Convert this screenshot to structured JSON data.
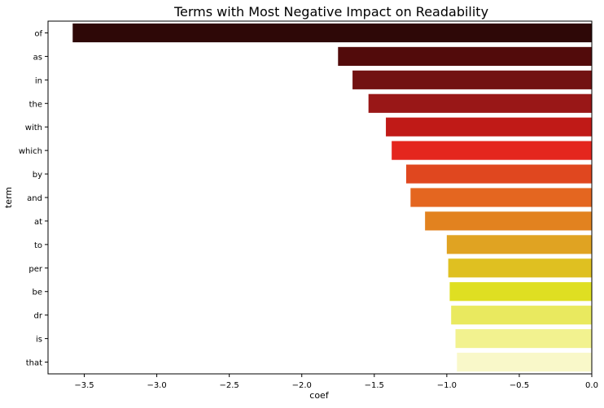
{
  "chart_data": {
    "type": "bar",
    "orientation": "horizontal",
    "title": "Terms with Most Negative Impact on Readability",
    "xlabel": "coef",
    "ylabel": "term",
    "xlim": [
      -3.75,
      0.0
    ],
    "xticks": [
      -3.5,
      -3.0,
      -2.5,
      -2.0,
      -1.5,
      -1.0,
      -0.5,
      0.0
    ],
    "xtick_labels": [
      "−3.5",
      "−3.0",
      "−2.5",
      "−2.0",
      "−1.5",
      "−1.0",
      "−0.5",
      "0.0"
    ],
    "grid": false,
    "categories": [
      "of",
      "as",
      "in",
      "the",
      "with",
      "which",
      "by",
      "and",
      "at",
      "to",
      "per",
      "be",
      "dr",
      "is",
      "that"
    ],
    "values": [
      -3.58,
      -1.75,
      -1.65,
      -1.54,
      -1.42,
      -1.38,
      -1.28,
      -1.25,
      -1.15,
      -1.0,
      -0.99,
      -0.98,
      -0.97,
      -0.94,
      -0.93
    ],
    "colors": [
      "#2e0807",
      "#520b0b",
      "#721212",
      "#991717",
      "#c01a17",
      "#e4261e",
      "#e0471f",
      "#e46620",
      "#e2821f",
      "#e0a322",
      "#dfc021",
      "#dfdf22",
      "#e9e95f",
      "#f2f28f",
      "#f9f8c9"
    ]
  }
}
